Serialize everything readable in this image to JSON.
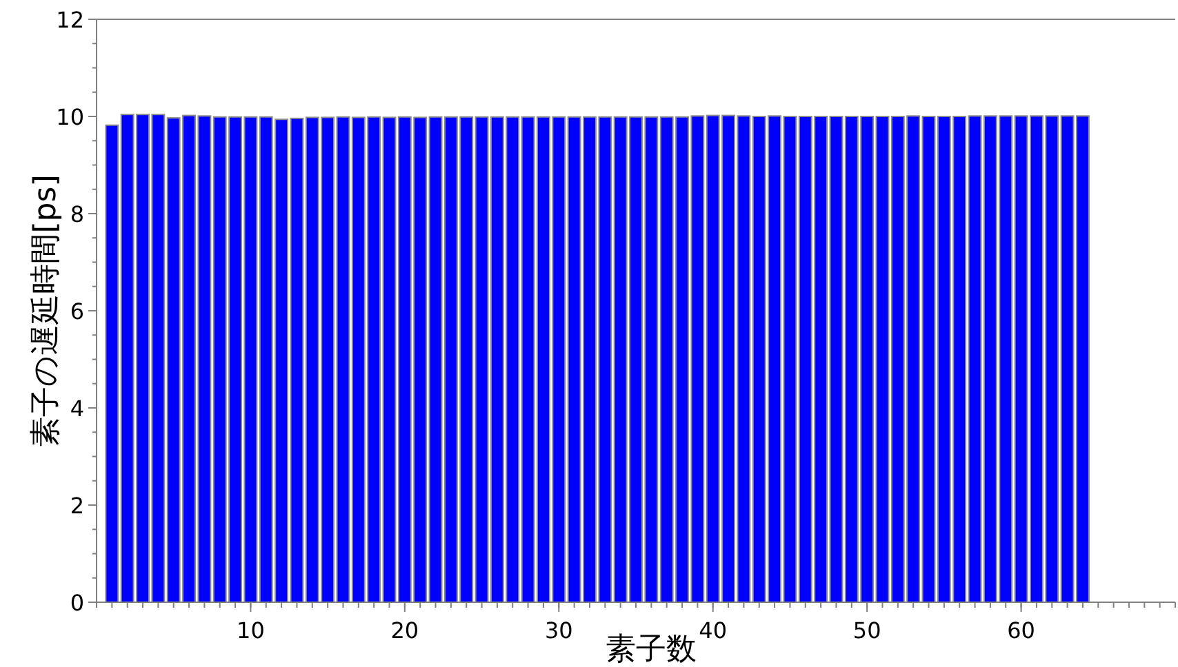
{
  "chart_data": {
    "type": "bar",
    "xlabel": "素子数",
    "ylabel": "素子の遅延時間[ps]",
    "x": [
      1,
      2,
      3,
      4,
      5,
      6,
      7,
      8,
      9,
      10,
      11,
      12,
      13,
      14,
      15,
      16,
      17,
      18,
      19,
      20,
      21,
      22,
      23,
      24,
      25,
      26,
      27,
      28,
      29,
      30,
      31,
      32,
      33,
      34,
      35,
      36,
      37,
      38,
      39,
      40,
      41,
      42,
      43,
      44,
      45,
      46,
      47,
      48,
      49,
      50,
      51,
      52,
      53,
      54,
      55,
      56,
      57,
      58,
      59,
      60,
      61,
      62,
      63,
      64
    ],
    "values": [
      9.82,
      10.04,
      10.04,
      10.04,
      9.97,
      10.02,
      10.01,
      9.99,
      9.99,
      9.99,
      9.99,
      9.94,
      9.96,
      9.98,
      9.98,
      9.99,
      9.98,
      9.99,
      9.98,
      9.99,
      9.98,
      9.99,
      9.99,
      9.99,
      9.99,
      9.99,
      9.99,
      9.99,
      9.99,
      9.99,
      9.99,
      9.99,
      9.99,
      9.99,
      9.99,
      9.99,
      9.99,
      9.99,
      10.01,
      10.02,
      10.02,
      10.01,
      10.0,
      10.01,
      10.0,
      10.0,
      10.0,
      10.0,
      10.0,
      10.0,
      10.0,
      10.0,
      10.01,
      10.0,
      10.0,
      10.0,
      10.01,
      10.01,
      10.01,
      10.01,
      10.01,
      10.01,
      10.01,
      10.01
    ],
    "color": "#0000ff",
    "xlim": [
      0,
      70
    ],
    "xticks": [
      10,
      20,
      30,
      40,
      50,
      60
    ],
    "ylim": [
      0,
      12
    ],
    "yticks": [
      0,
      2,
      4,
      6,
      8,
      10,
      12
    ]
  }
}
